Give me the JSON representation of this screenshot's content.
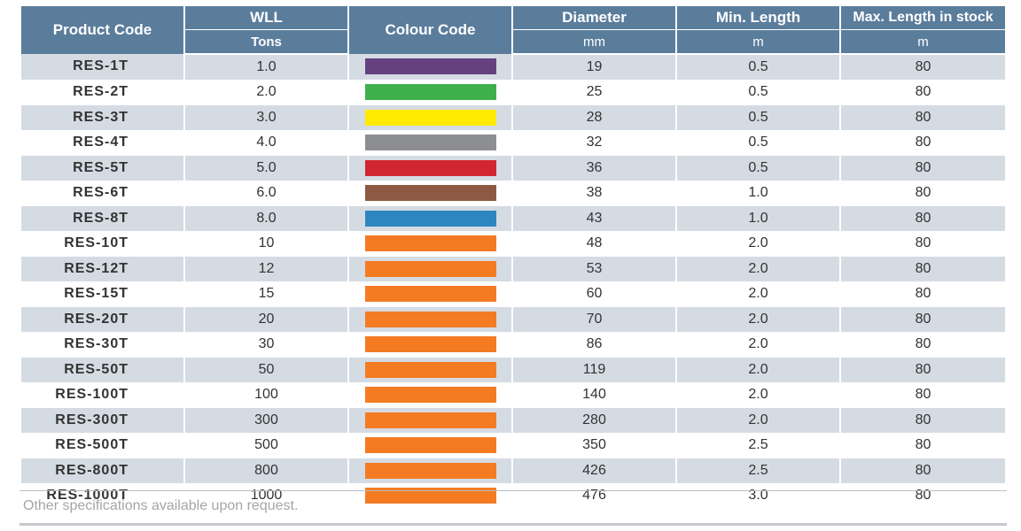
{
  "table": {
    "headers": {
      "product_code": "Product Code",
      "wll": "WLL",
      "wll_unit": "Tons",
      "colour_code": "Colour Code",
      "diameter": "Diameter",
      "diameter_unit": "mm",
      "min_length": "Min. Length",
      "min_length_unit": "m",
      "max_length": "Max. Length in stock",
      "max_length_unit": "m"
    },
    "rows": [
      {
        "code": "RES-1T",
        "wll": "1.0",
        "colour": "#65427f",
        "diameter": "19",
        "min": "0.5",
        "max": "80"
      },
      {
        "code": "RES-2T",
        "wll": "2.0",
        "colour": "#3faf4c",
        "diameter": "25",
        "min": "0.5",
        "max": "80"
      },
      {
        "code": "RES-3T",
        "wll": "3.0",
        "colour": "#ffea00",
        "diameter": "28",
        "min": "0.5",
        "max": "80"
      },
      {
        "code": "RES-4T",
        "wll": "4.0",
        "colour": "#8d8e92",
        "diameter": "32",
        "min": "0.5",
        "max": "80"
      },
      {
        "code": "RES-5T",
        "wll": "5.0",
        "colour": "#d12631",
        "diameter": "36",
        "min": "0.5",
        "max": "80"
      },
      {
        "code": "RES-6T",
        "wll": "6.0",
        "colour": "#8c5a43",
        "diameter": "38",
        "min": "1.0",
        "max": "80"
      },
      {
        "code": "RES-8T",
        "wll": "8.0",
        "colour": "#2e86c1",
        "diameter": "43",
        "min": "1.0",
        "max": "80"
      },
      {
        "code": "RES-10T",
        "wll": "10",
        "colour": "#f47b22",
        "diameter": "48",
        "min": "2.0",
        "max": "80"
      },
      {
        "code": "RES-12T",
        "wll": "12",
        "colour": "#f47b22",
        "diameter": "53",
        "min": "2.0",
        "max": "80"
      },
      {
        "code": "RES-15T",
        "wll": "15",
        "colour": "#f47b22",
        "diameter": "60",
        "min": "2.0",
        "max": "80"
      },
      {
        "code": "RES-20T",
        "wll": "20",
        "colour": "#f47b22",
        "diameter": "70",
        "min": "2.0",
        "max": "80"
      },
      {
        "code": "RES-30T",
        "wll": "30",
        "colour": "#f47b22",
        "diameter": "86",
        "min": "2.0",
        "max": "80"
      },
      {
        "code": "RES-50T",
        "wll": "50",
        "colour": "#f47b22",
        "diameter": "119",
        "min": "2.0",
        "max": "80"
      },
      {
        "code": "RES-100T",
        "wll": "100",
        "colour": "#f47b22",
        "diameter": "140",
        "min": "2.0",
        "max": "80"
      },
      {
        "code": "RES-300T",
        "wll": "300",
        "colour": "#f47b22",
        "diameter": "280",
        "min": "2.0",
        "max": "80"
      },
      {
        "code": "RES-500T",
        "wll": "500",
        "colour": "#f47b22",
        "diameter": "350",
        "min": "2.5",
        "max": "80"
      },
      {
        "code": "RES-800T",
        "wll": "800",
        "colour": "#f47b22",
        "diameter": "426",
        "min": "2.5",
        "max": "80"
      },
      {
        "code": "RES-1000T",
        "wll": "1000",
        "colour": "#f47b22",
        "diameter": "476",
        "min": "3.0",
        "max": "80"
      }
    ]
  },
  "footnote": "Other specifications available upon request.",
  "colors": {
    "header_bg": "#5b7d9c",
    "stripe_bg": "#d5dbe3",
    "footnote_text": "#a6a6a6"
  }
}
